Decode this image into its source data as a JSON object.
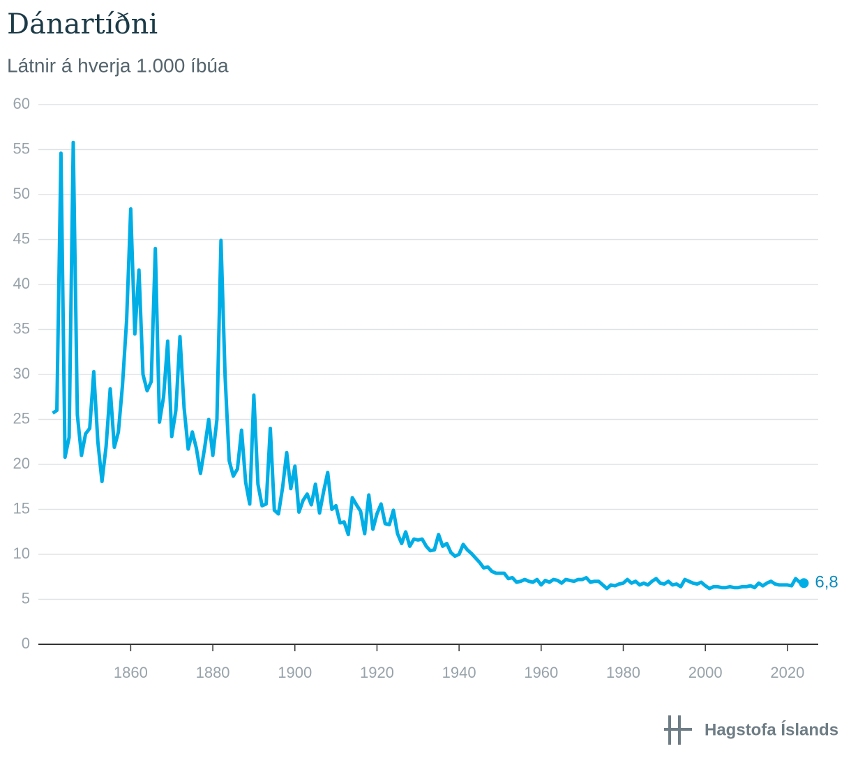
{
  "chart_data": {
    "type": "line",
    "title": "Dánartíðni",
    "subtitle": "Látnir á hverja 1.000 íbúa",
    "source": "Hagstofa Íslands",
    "color": "#00aee6",
    "label_color": "#0a8cbf",
    "x": [
      1841,
      1842,
      1843,
      1844,
      1845,
      1846,
      1847,
      1848,
      1849,
      1850,
      1851,
      1852,
      1853,
      1854,
      1855,
      1856,
      1857,
      1858,
      1859,
      1860,
      1861,
      1862,
      1863,
      1864,
      1865,
      1866,
      1867,
      1868,
      1869,
      1870,
      1871,
      1872,
      1873,
      1874,
      1875,
      1876,
      1877,
      1878,
      1879,
      1880,
      1881,
      1882,
      1883,
      1884,
      1885,
      1886,
      1887,
      1888,
      1889,
      1890,
      1891,
      1892,
      1893,
      1894,
      1895,
      1896,
      1897,
      1898,
      1899,
      1900,
      1901,
      1902,
      1903,
      1904,
      1905,
      1906,
      1907,
      1908,
      1909,
      1910,
      1911,
      1912,
      1913,
      1914,
      1915,
      1916,
      1917,
      1918,
      1919,
      1920,
      1921,
      1922,
      1923,
      1924,
      1925,
      1926,
      1927,
      1928,
      1929,
      1930,
      1931,
      1932,
      1933,
      1934,
      1935,
      1936,
      1937,
      1938,
      1939,
      1940,
      1941,
      1942,
      1943,
      1944,
      1945,
      1946,
      1947,
      1948,
      1949,
      1950,
      1951,
      1952,
      1953,
      1954,
      1955,
      1956,
      1957,
      1958,
      1959,
      1960,
      1961,
      1962,
      1963,
      1964,
      1965,
      1966,
      1967,
      1968,
      1969,
      1970,
      1971,
      1972,
      1973,
      1974,
      1975,
      1976,
      1977,
      1978,
      1979,
      1980,
      1981,
      1982,
      1983,
      1984,
      1985,
      1986,
      1987,
      1988,
      1989,
      1990,
      1991,
      1992,
      1993,
      1994,
      1995,
      1996,
      1997,
      1998,
      1999,
      2000,
      2001,
      2002,
      2003,
      2004,
      2005,
      2006,
      2007,
      2008,
      2009,
      2010,
      2011,
      2012,
      2013,
      2014,
      2015,
      2016,
      2017,
      2018,
      2019,
      2020,
      2021,
      2022,
      2023,
      2024
    ],
    "values": [
      25.7,
      26,
      54.6,
      20.8,
      23,
      55.8,
      25.5,
      21,
      23.4,
      24,
      30.3,
      22.5,
      18.1,
      22,
      28.4,
      21.9,
      23.6,
      28.8,
      36,
      48.4,
      34.5,
      41.6,
      30,
      28.2,
      29.2,
      44,
      24.7,
      27.5,
      33.7,
      23.1,
      26,
      34.2,
      26.3,
      21.7,
      23.6,
      21.8,
      19,
      21.8,
      25,
      21,
      25,
      44.9,
      29.8,
      20.4,
      18.7,
      19.5,
      23.8,
      18,
      15.6,
      27.7,
      17.8,
      15.4,
      15.6,
      24,
      14.9,
      14.5,
      17.4,
      21.3,
      17.3,
      19.8,
      14.7,
      16,
      16.7,
      15.5,
      17.8,
      14.6,
      17,
      19.1,
      15,
      15.4,
      13.5,
      13.6,
      12.2,
      16.3,
      15.5,
      14.8,
      12.3,
      16.6,
      12.8,
      14.5,
      15.6,
      13.4,
      13.3,
      14.9,
      12.3,
      11.2,
      12.5,
      10.9,
      11.7,
      11.6,
      11.7,
      10.9,
      10.4,
      10.5,
      12.2,
      10.9,
      11.2,
      10.2,
      9.8,
      10,
      11.1,
      10.5,
      10.1,
      9.6,
      9.1,
      8.5,
      8.6,
      8.1,
      7.9,
      7.9,
      7.9,
      7.3,
      7.4,
      6.9,
      7,
      7.2,
      7,
      6.9,
      7.2,
      6.6,
      7.1,
      6.9,
      7.2,
      7.1,
      6.8,
      7.2,
      7.1,
      7,
      7.2,
      7.2,
      7.4,
      6.9,
      7,
      7,
      6.6,
      6.2,
      6.6,
      6.5,
      6.7,
      6.8,
      7.2,
      6.8,
      7,
      6.6,
      6.8,
      6.6,
      7,
      7.3,
      6.8,
      6.7,
      7,
      6.6,
      6.7,
      6.4,
      7.2,
      7,
      6.8,
      6.7,
      6.9,
      6.5,
      6.2,
      6.4,
      6.4,
      6.3,
      6.3,
      6.4,
      6.3,
      6.3,
      6.4,
      6.4,
      6.5,
      6.3,
      6.8,
      6.5,
      6.8,
      7,
      6.7,
      6.6,
      6.6,
      6.6,
      6.5,
      7.3,
      6.9,
      6.8
    ],
    "value_labels": [
      null,
      null,
      null,
      null,
      null,
      null,
      null,
      null,
      null,
      null,
      null,
      null,
      null,
      null,
      null,
      null,
      null,
      null,
      null,
      null,
      null,
      null,
      null,
      null,
      null,
      null,
      null,
      null,
      null,
      null,
      null,
      null,
      null,
      null,
      null,
      null,
      null,
      null,
      null,
      null,
      null,
      null,
      null,
      null,
      null,
      null,
      null,
      null,
      null,
      null,
      null,
      null,
      null,
      null,
      null,
      null,
      null,
      null,
      null,
      null,
      null,
      null,
      null,
      null,
      null,
      null,
      null,
      null,
      null,
      null,
      null,
      null,
      null,
      null,
      null,
      null,
      null,
      null,
      null,
      null,
      null,
      null,
      null,
      null,
      null,
      null,
      null,
      null,
      null,
      null,
      null,
      null,
      null,
      null,
      null,
      null,
      null,
      null,
      null,
      null,
      null,
      null,
      null,
      null,
      null,
      null,
      null,
      null,
      null,
      null,
      null,
      null,
      null,
      null,
      null,
      null,
      null,
      null,
      null,
      null,
      null,
      null,
      null,
      null,
      null,
      null,
      null,
      null,
      null,
      null,
      null,
      null,
      null,
      null,
      null,
      null,
      null,
      null,
      null,
      null,
      null,
      null,
      null,
      null,
      null,
      null,
      null,
      null,
      null,
      null,
      null,
      null,
      null,
      null,
      null,
      null,
      null,
      null,
      null,
      null,
      null,
      null,
      null,
      null,
      null,
      null,
      null,
      null,
      null,
      null,
      null,
      null,
      null,
      null,
      null,
      null,
      null,
      null,
      null,
      null,
      null,
      null,
      null,
      "6,8"
    ],
    "xlim": [
      1837.5,
      2027.5
    ],
    "xticks": [
      1860,
      1880,
      1900,
      1920,
      1940,
      1960,
      1980,
      2000,
      2020
    ],
    "ylim": [
      0,
      60
    ],
    "yticks": [
      0,
      5,
      10,
      15,
      20,
      25,
      30,
      35,
      40,
      45,
      50,
      55,
      60
    ],
    "grid": true
  }
}
